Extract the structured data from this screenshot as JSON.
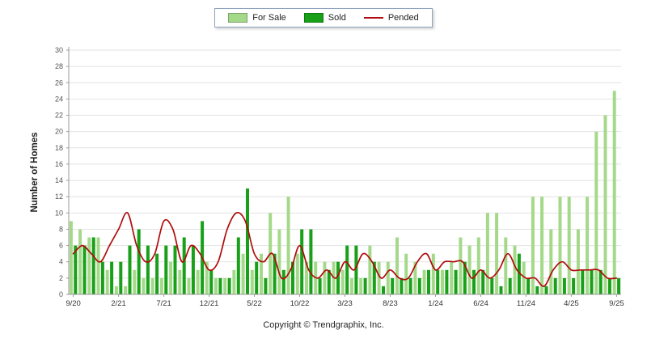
{
  "legend": {
    "items": [
      {
        "label": "For Sale",
        "type": "box"
      },
      {
        "label": "Sold",
        "type": "box"
      },
      {
        "label": "Pended",
        "type": "line"
      }
    ]
  },
  "footer": {
    "copyright": "Copyright © Trendgraphix, Inc."
  },
  "chart_data": {
    "type": "bar",
    "title": "",
    "xlabel": "",
    "ylabel": "Number of Homes",
    "ylim": [
      0,
      30
    ],
    "ytick_step": 2,
    "grid": true,
    "legend_position": "top-center",
    "categories": [
      "9/20",
      "10/20",
      "11/20",
      "12/20",
      "1/21",
      "2/21",
      "3/21",
      "4/21",
      "5/21",
      "6/21",
      "7/21",
      "8/21",
      "9/21",
      "10/21",
      "11/21",
      "12/21",
      "1/22",
      "2/22",
      "3/22",
      "4/22",
      "5/22",
      "6/22",
      "7/22",
      "8/22",
      "9/22",
      "10/22",
      "11/22",
      "12/22",
      "1/23",
      "2/23",
      "3/23",
      "4/23",
      "5/23",
      "6/23",
      "7/23",
      "8/23",
      "9/23",
      "10/23",
      "11/23",
      "12/23",
      "1/24",
      "2/24",
      "3/24",
      "4/24",
      "5/24",
      "6/24",
      "7/24",
      "8/24",
      "9/24",
      "10/24",
      "11/24",
      "12/24",
      "1/25",
      "2/25",
      "3/25",
      "4/25",
      "5/25",
      "6/25",
      "7/25",
      "8/25",
      "9/25"
    ],
    "xtick_labels": [
      "9/20",
      "2/21",
      "7/21",
      "12/21",
      "5/22",
      "10/22",
      "3/23",
      "8/23",
      "1/24",
      "6/24",
      "11/24",
      "4/25",
      "9/25"
    ],
    "series": [
      {
        "name": "For Sale",
        "render": "bar",
        "color": "#a5d98a",
        "values": [
          9,
          8,
          7,
          7,
          3,
          1,
          1,
          3,
          2,
          2,
          2,
          4,
          3,
          2,
          3,
          4,
          2,
          2,
          3,
          5,
          3,
          5,
          10,
          8,
          12,
          5,
          4,
          4,
          4,
          4,
          3,
          2,
          2,
          6,
          4,
          4,
          7,
          5,
          4,
          3,
          5,
          3,
          4,
          7,
          6,
          7,
          10,
          10,
          7,
          6,
          4,
          12,
          12,
          8,
          12,
          12,
          8,
          12,
          20,
          22,
          25
        ]
      },
      {
        "name": "Sold",
        "render": "bar",
        "color": "#19a019",
        "values": [
          6,
          6,
          7,
          4,
          4,
          4,
          6,
          8,
          6,
          5,
          6,
          6,
          7,
          6,
          9,
          3,
          2,
          2,
          7,
          13,
          4,
          2,
          5,
          3,
          4,
          8,
          8,
          2,
          3,
          4,
          6,
          6,
          2,
          4,
          1,
          2,
          2,
          2,
          2,
          3,
          3,
          3,
          3,
          4,
          3,
          3,
          2,
          1,
          2,
          5,
          2,
          1,
          1,
          2,
          2,
          2,
          3,
          3,
          3,
          2,
          2
        ]
      },
      {
        "name": "Pended",
        "render": "line",
        "color": "#b00c0c",
        "values": [
          5,
          6,
          5,
          4,
          6,
          8,
          10,
          6,
          4,
          5,
          9,
          8,
          4,
          6,
          5,
          3,
          4,
          8,
          10,
          9,
          5,
          4,
          5,
          2,
          3,
          6,
          3,
          2,
          3,
          2,
          4,
          3,
          5,
          4,
          2,
          3,
          2,
          2,
          4,
          5,
          3,
          4,
          4,
          4,
          2,
          3,
          2,
          3,
          5,
          3,
          2,
          2,
          1,
          3,
          4,
          3,
          3,
          3,
          3,
          2,
          2
        ]
      }
    ]
  }
}
